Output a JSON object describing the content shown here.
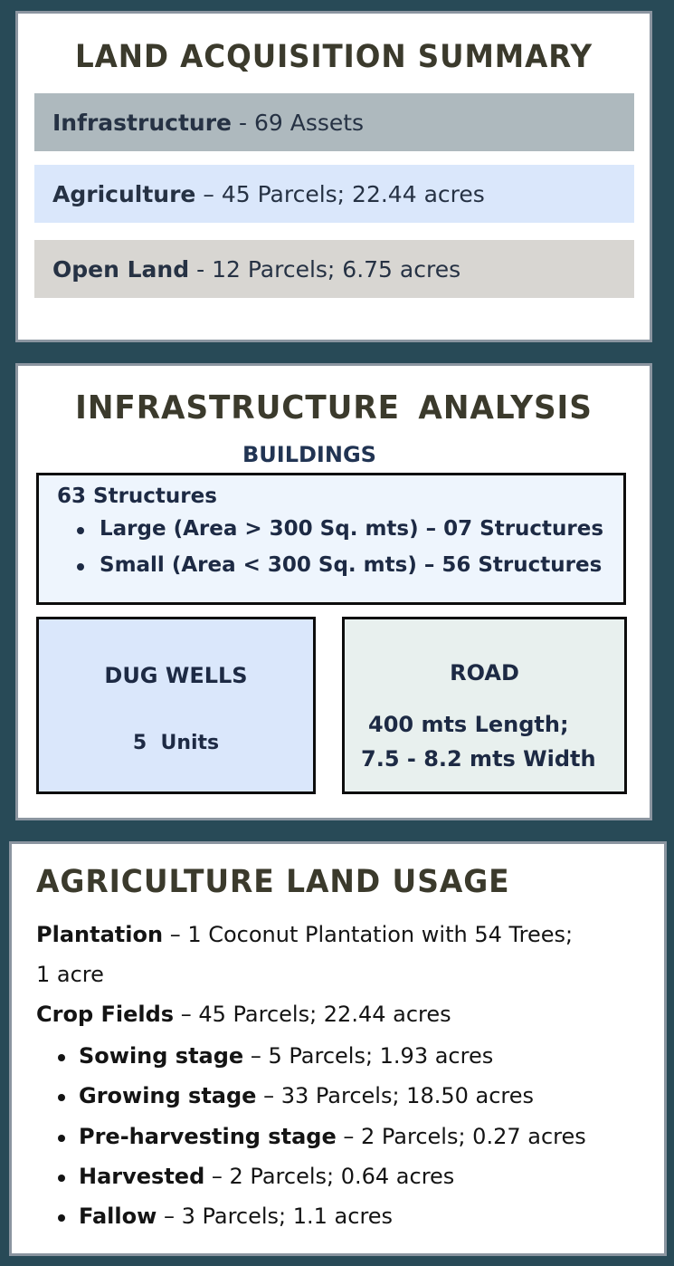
{
  "acquisition": {
    "title": "LAND ACQUISITION SUMMARY",
    "items": [
      {
        "label": "Infrastructure",
        "detail": "- 69 Assets"
      },
      {
        "label": "Agriculture",
        "detail": "– 45 Parcels; 22.44 acres"
      },
      {
        "label": "Open Land",
        "detail": "- 12 Parcels; 6.75 acres"
      }
    ],
    "colors": {
      "infrastructure": "#aeb9be",
      "agriculture": "#dae7fb",
      "open_land": "#d8d6d2"
    }
  },
  "infrastructure": {
    "title": "INFRASTRUCTURE  ANALYSIS",
    "subtitle": "BUILDINGS",
    "buildings": {
      "total": "63 Structures",
      "items": [
        "Large (Area > 300 Sq. mts) – 07 Structures",
        "Small (Area < 300 Sq. mts) – 56 Structures"
      ]
    },
    "dug_wells": {
      "label": "DUG WELLS",
      "value": "5  Units"
    },
    "road": {
      "label": "ROAD",
      "length": "400 mts Length;",
      "width": "7.5 - 8.2 mts Width"
    }
  },
  "agriculture_usage": {
    "title": "AGRICULTURE LAND USAGE",
    "plantation": {
      "label": "Plantation",
      "detail": "– 1 Coconut Plantation with 54 Trees;",
      "continuation": "1 acre"
    },
    "crop_fields": {
      "label": "Crop Fields",
      "detail": "– 45 Parcels; 22.44 acres"
    },
    "stages": [
      {
        "label": "Sowing stage",
        "detail": "– 5 Parcels; 1.93 acres"
      },
      {
        "label": "Growing stage",
        "detail": "– 33 Parcels; 18.50 acres"
      },
      {
        "label": "Pre-harvesting stage",
        "detail": "– 2 Parcels; 0.27 acres"
      },
      {
        "label": "Harvested",
        "detail": "– 2 Parcels; 0.64 acres"
      },
      {
        "label": "Fallow",
        "detail": "– 3 Parcels; 1.1 acres"
      }
    ]
  },
  "colors": {
    "background": "#284a57",
    "title": "#3b3a2c",
    "panel_border": "#8b95a0"
  }
}
